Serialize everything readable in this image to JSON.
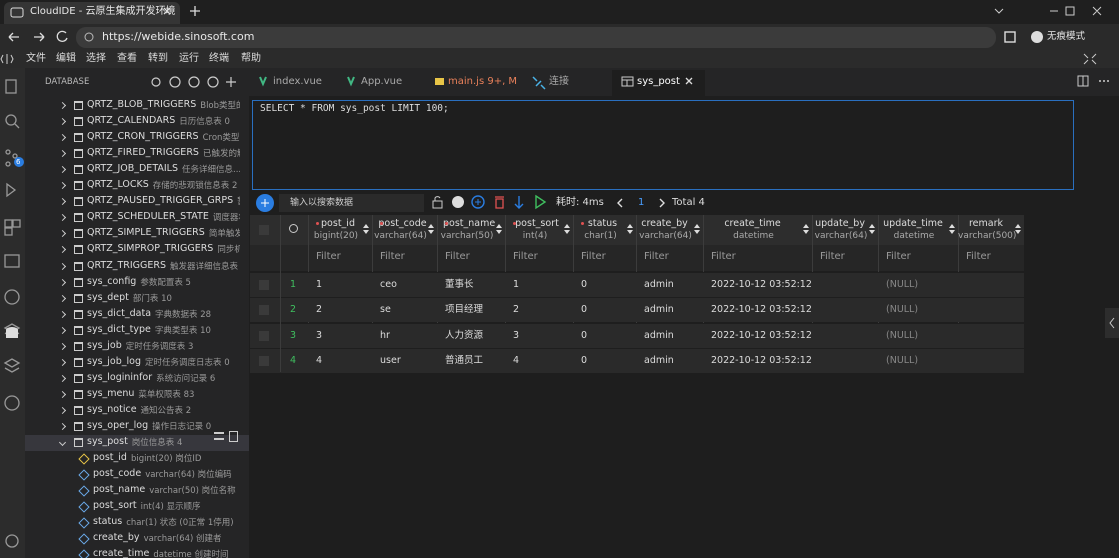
{
  "browser": {
    "tab_title": "CloudIDE - 云原生集成开发环境",
    "url": "https://webide.sinosoft.com",
    "incognito": "无痕模式"
  },
  "menu": [
    "文件",
    "编辑",
    "选择",
    "查看",
    "转到",
    "运行",
    "终端",
    "帮助"
  ],
  "activity_badge": 6,
  "sidebar": {
    "title": "DATABASE",
    "tables": [
      {
        "name": "QRTZ_BLOB_TRIGGERS",
        "comment": "Blob类型的..."
      },
      {
        "name": "QRTZ_CALENDARS",
        "comment": "日历信息表 0"
      },
      {
        "name": "QRTZ_CRON_TRIGGERS",
        "comment": "Cron类型..."
      },
      {
        "name": "QRTZ_FIRED_TRIGGERS",
        "comment": "已触发的触..."
      },
      {
        "name": "QRTZ_JOB_DETAILS",
        "comment": "任务详细信息..."
      },
      {
        "name": "QRTZ_LOCKS",
        "comment": "存储的悲观锁信息表 2"
      },
      {
        "name": "QRTZ_PAUSED_TRIGGER_GRPS",
        "comment": "暂..."
      },
      {
        "name": "QRTZ_SCHEDULER_STATE",
        "comment": "调度器状..."
      },
      {
        "name": "QRTZ_SIMPLE_TRIGGERS",
        "comment": "简单触发..."
      },
      {
        "name": "QRTZ_SIMPROP_TRIGGERS",
        "comment": "同步机..."
      },
      {
        "name": "QRTZ_TRIGGERS",
        "comment": "触发器详细信息表 3"
      },
      {
        "name": "sys_config",
        "comment": "参数配置表 5"
      },
      {
        "name": "sys_dept",
        "comment": "部门表 10"
      },
      {
        "name": "sys_dict_data",
        "comment": "字典数据表 28"
      },
      {
        "name": "sys_dict_type",
        "comment": "字典类型表 10"
      },
      {
        "name": "sys_job",
        "comment": "定时任务调度表 3"
      },
      {
        "name": "sys_job_log",
        "comment": "定时任务调度日志表 0"
      },
      {
        "name": "sys_logininfor",
        "comment": "系统访问记录 6"
      },
      {
        "name": "sys_menu",
        "comment": "菜单权限表 83"
      },
      {
        "name": "sys_notice",
        "comment": "通知公告表 2"
      },
      {
        "name": "sys_oper_log",
        "comment": "操作日志记录 0"
      },
      {
        "name": "sys_post",
        "comment": "岗位信息表 4"
      }
    ],
    "expanded_columns": [
      {
        "name": "post_id",
        "detail": "bigint(20) 岗位ID"
      },
      {
        "name": "post_code",
        "detail": "varchar(64) 岗位编码"
      },
      {
        "name": "post_name",
        "detail": "varchar(50) 岗位名称"
      },
      {
        "name": "post_sort",
        "detail": "int(4) 显示顺序"
      },
      {
        "name": "status",
        "detail": "char(1) 状态 (0正常 1停用)"
      },
      {
        "name": "create_by",
        "detail": "varchar(64) 创建者"
      },
      {
        "name": "create_time",
        "detail": "datetime 创建时间"
      }
    ]
  },
  "editor_tabs": [
    {
      "label": "index.vue"
    },
    {
      "label": "App.vue"
    },
    {
      "label": "main.js 9+, M"
    },
    {
      "label": "连接"
    },
    {
      "label": "sys_post"
    }
  ],
  "sql": "SELECT * FROM sys_post LIMIT 100;",
  "toolbar": {
    "search_placeholder": "输入以搜索数据",
    "elapsed": "耗时: 4ms",
    "page": 1,
    "total": "Total 4"
  },
  "table": {
    "filter_placeholder": "Filter",
    "columns": [
      {
        "name": "post_id",
        "type": "bigint(20)"
      },
      {
        "name": "post_code",
        "type": "varchar(64)"
      },
      {
        "name": "post_name",
        "type": "varchar(50)"
      },
      {
        "name": "post_sort",
        "type": "int(4)"
      },
      {
        "name": "status",
        "type": "char(1)"
      },
      {
        "name": "create_by",
        "type": "varchar(64)"
      },
      {
        "name": "create_time",
        "type": "datetime"
      },
      {
        "name": "update_by",
        "type": "varchar(64)"
      },
      {
        "name": "update_time",
        "type": "datetime"
      },
      {
        "name": "remark",
        "type": "varchar(500)"
      }
    ],
    "rows": [
      {
        "index": 1,
        "post_id": 1,
        "post_code": "ceo",
        "post_name": "董事长",
        "post_sort": 1,
        "status": 0,
        "create_by": "admin",
        "create_time": "2022-10-12 03:52:12",
        "update_time": "(NULL)"
      },
      {
        "index": 2,
        "post_id": 2,
        "post_code": "se",
        "post_name": "项目经理",
        "post_sort": 2,
        "status": 0,
        "create_by": "admin",
        "create_time": "2022-10-12 03:52:12",
        "update_time": "(NULL)"
      },
      {
        "index": 3,
        "post_id": 3,
        "post_code": "hr",
        "post_name": "人力资源",
        "post_sort": 3,
        "status": 0,
        "create_by": "admin",
        "create_time": "2022-10-12 03:52:12",
        "update_time": "(NULL)"
      },
      {
        "index": 4,
        "post_id": 4,
        "post_code": "user",
        "post_name": "普通员工",
        "post_sort": 4,
        "status": 0,
        "create_by": "admin",
        "create_time": "2022-10-12 03:52:12",
        "update_time": "(NULL)"
      }
    ]
  }
}
